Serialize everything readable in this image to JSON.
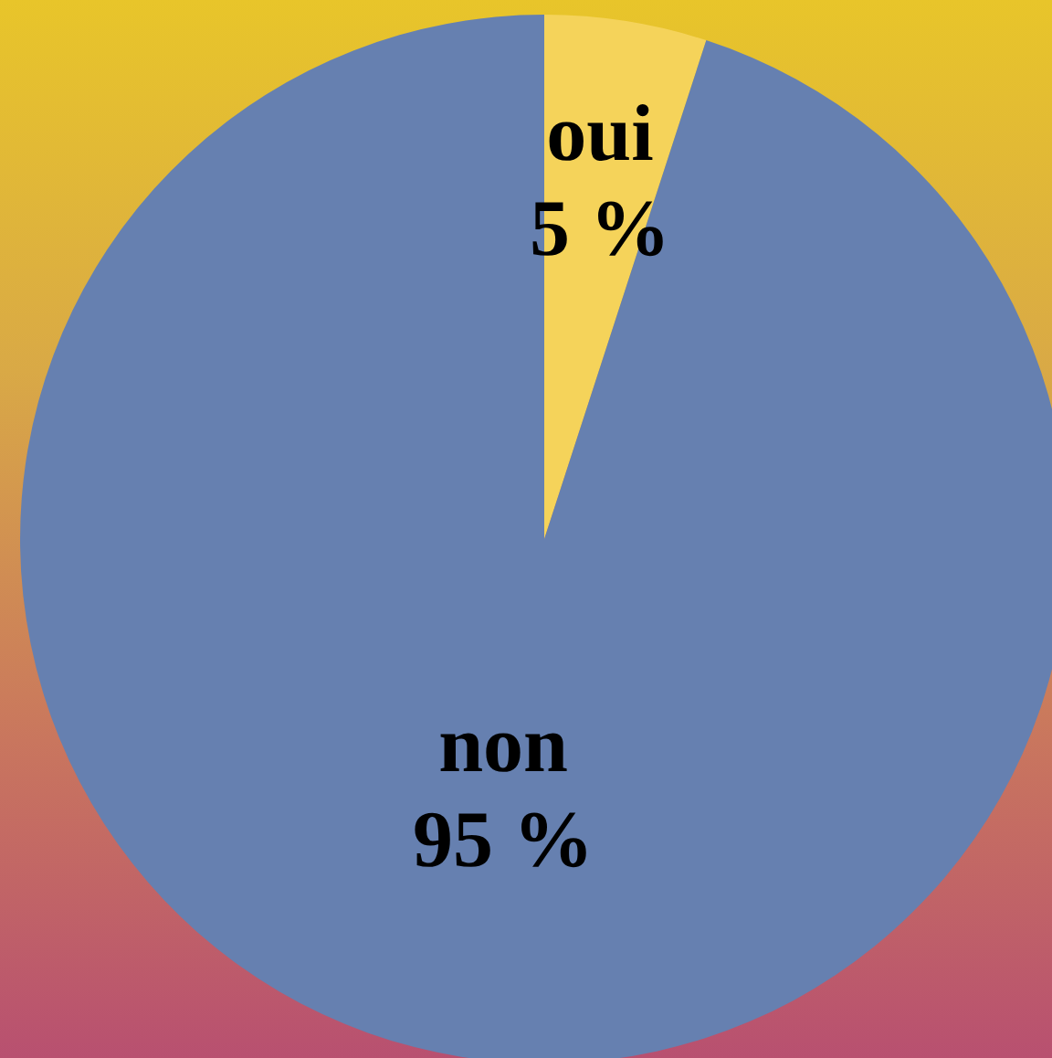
{
  "chart_data": {
    "type": "pie",
    "categories": [
      "oui",
      "non"
    ],
    "values": [
      5,
      95
    ],
    "colors": [
      "#f5d35a",
      "#6680b0"
    ],
    "value_labels": [
      "5 %",
      "95 %"
    ],
    "legend": false
  }
}
